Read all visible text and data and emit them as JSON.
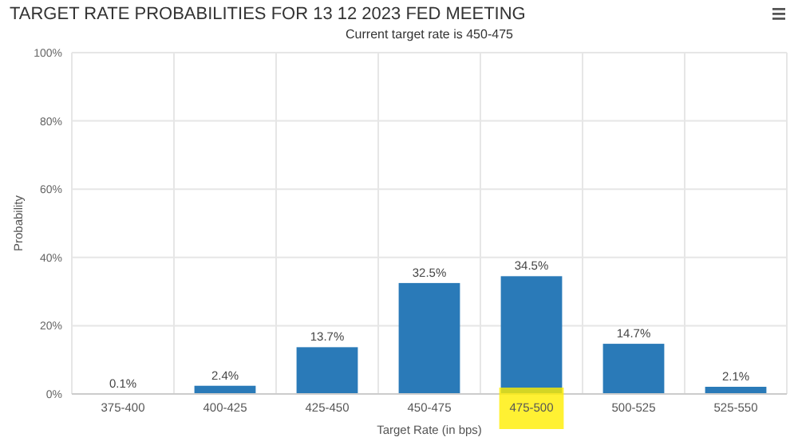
{
  "chart_data": {
    "type": "bar",
    "title": "TARGET RATE PROBABILITIES FOR 13 12 2023 FED MEETING",
    "subtitle": "Current target rate is 450-475",
    "xlabel": "Target Rate (in bps)",
    "ylabel": "Probability",
    "categories": [
      "375-400",
      "400-425",
      "425-450",
      "450-475",
      "475-500",
      "500-525",
      "525-550"
    ],
    "values": [
      0.1,
      2.4,
      13.7,
      32.5,
      34.5,
      14.7,
      2.1
    ],
    "value_labels": [
      "0.1%",
      "2.4%",
      "13.7%",
      "32.5%",
      "34.5%",
      "14.7%",
      "2.1%"
    ],
    "color": "#2a7ab8",
    "ylim": [
      0,
      100
    ],
    "yticks": [
      {
        "value": 0,
        "label": "0%"
      },
      {
        "value": 20,
        "label": "20%"
      },
      {
        "value": 40,
        "label": "40%"
      },
      {
        "value": 60,
        "label": "60%"
      },
      {
        "value": 80,
        "label": "80%"
      },
      {
        "value": 100,
        "label": "100%"
      }
    ],
    "grid": true
  }
}
